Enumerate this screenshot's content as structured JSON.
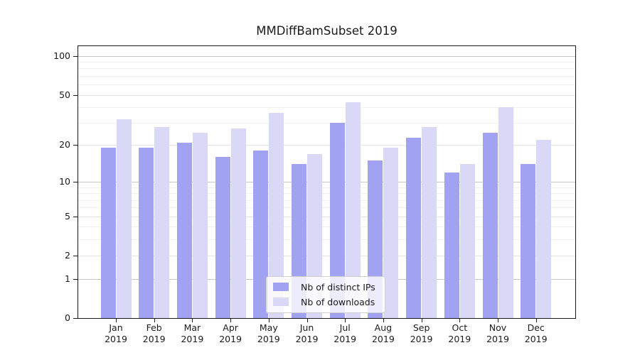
{
  "title": "MMDiffBamSubset 2019",
  "chart_data": {
    "type": "bar",
    "title": "MMDiffBamSubset 2019",
    "categories": [
      "Jan 2019",
      "Feb 2019",
      "Mar 2019",
      "Apr 2019",
      "May 2019",
      "Jun 2019",
      "Jul 2019",
      "Aug 2019",
      "Sep 2019",
      "Oct 2019",
      "Nov 2019",
      "Dec 2019"
    ],
    "series": [
      {
        "name": "Nb of distinct IPs",
        "color": "#a2a2f2",
        "values": [
          19,
          19,
          21,
          16,
          18,
          14,
          30,
          15,
          23,
          12,
          25,
          14
        ]
      },
      {
        "name": "Nb of downloads",
        "color": "#d9d9f7",
        "values": [
          32,
          28,
          25,
          27,
          36,
          17,
          44,
          19,
          28,
          14,
          40,
          22
        ]
      }
    ],
    "xlabel": "",
    "ylabel": "",
    "yscale": "log1p",
    "ylim": [
      0,
      119
    ],
    "yticks": [
      0,
      1,
      2,
      5,
      10,
      20,
      50,
      100
    ],
    "grid": "on",
    "legend_position": "lower center inside"
  },
  "axis_colors": {
    "grid_major": "#c8c8c8",
    "grid_mid": "#e4e4e4",
    "grid_minor": "#f1f1f1",
    "spine": "#1a1a1a",
    "tick_label": "#1a1a1a"
  }
}
